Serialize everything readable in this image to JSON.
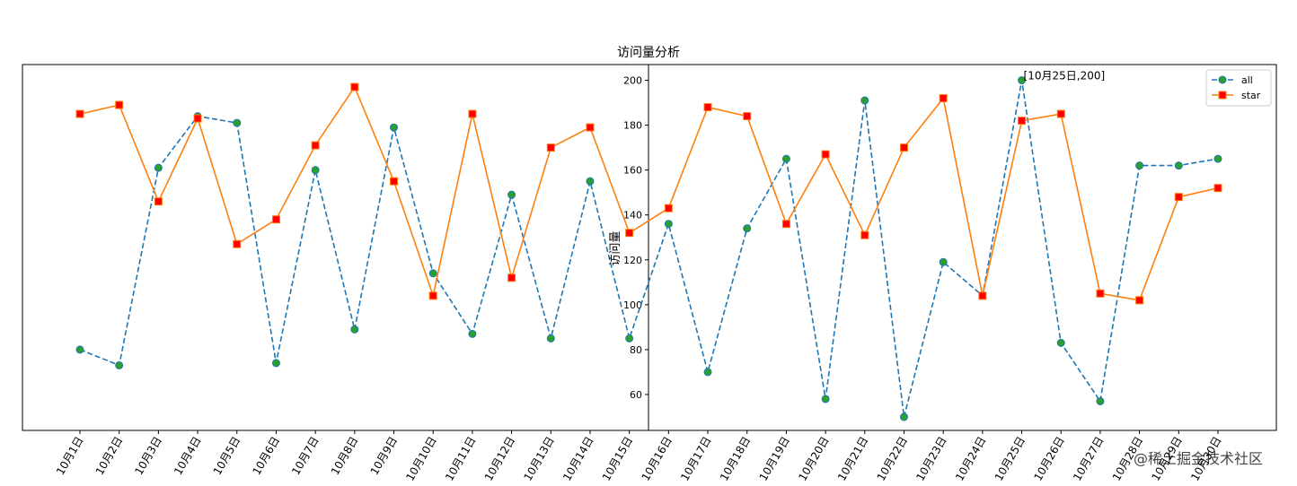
{
  "chart_data": {
    "type": "line",
    "title": "访问量分析",
    "xlabel": "",
    "ylabel": "访问量",
    "ylim": [
      44,
      207
    ],
    "yticks": [
      60,
      80,
      100,
      120,
      140,
      160,
      180,
      200
    ],
    "grid": false,
    "legend_position": "top-right",
    "categories": [
      "10月1日",
      "10月2日",
      "10月3日",
      "10月4日",
      "10月5日",
      "10月6日",
      "10月7日",
      "10月8日",
      "10月9日",
      "10月10日",
      "10月11日",
      "10月12日",
      "10月13日",
      "10月14日",
      "10月15日",
      "10月16日",
      "10月17日",
      "10月18日",
      "10月19日",
      "10月20日",
      "10月21日",
      "10月22日",
      "10月23日",
      "10月24日",
      "10月25日",
      "10月26日",
      "10月27日",
      "10月28日",
      "10月29日",
      "10月30日"
    ],
    "series": [
      {
        "name": "all",
        "color": "#1f77b4",
        "marker_face": "#2ca02c",
        "line_style": "dashed",
        "marker": "circle",
        "values": [
          80,
          73,
          161,
          184,
          181,
          74,
          160,
          89,
          179,
          114,
          87,
          149,
          85,
          155,
          85,
          136,
          70,
          134,
          165,
          58,
          191,
          50,
          119,
          104,
          200,
          83,
          57,
          162,
          162,
          165
        ]
      },
      {
        "name": "star",
        "color": "#ff7f0e",
        "marker_face": "#ff0000",
        "line_style": "solid",
        "marker": "square",
        "values": [
          185,
          189,
          146,
          183,
          127,
          138,
          171,
          197,
          155,
          104,
          185,
          112,
          170,
          179,
          132,
          143,
          188,
          184,
          136,
          167,
          131,
          170,
          192,
          104,
          182,
          185,
          105,
          102,
          148,
          152
        ]
      }
    ],
    "annotation": {
      "text": "[10月25日,200]",
      "category": "10月25日",
      "value": 200,
      "color": "#ff0000"
    }
  },
  "watermark": "@稀土掘金技术社区"
}
